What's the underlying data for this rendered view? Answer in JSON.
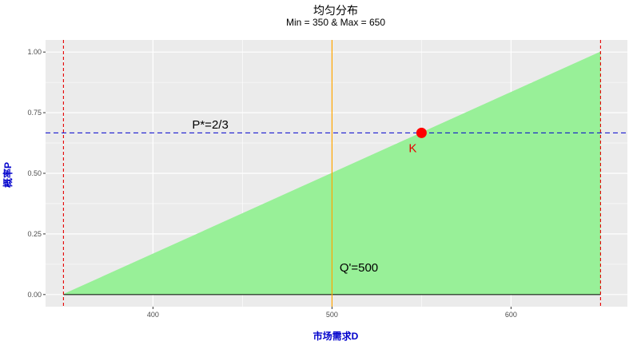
{
  "chart_data": {
    "type": "area",
    "title": "均匀分布",
    "subtitle": "Min = 350 & Max = 650",
    "xlabel": "市场需求D",
    "ylabel": "概率P",
    "xlim": [
      340,
      665
    ],
    "ylim": [
      -0.05,
      1.05
    ],
    "grid": true,
    "x_ticks": [
      400,
      500,
      600
    ],
    "x_tick_labels": [
      "400",
      "500",
      "600"
    ],
    "y_ticks": [
      0,
      0.25,
      0.5,
      0.75,
      1.0
    ],
    "y_tick_labels": [
      "0.00",
      "0.25",
      "0.50",
      "0.75",
      "1.00"
    ],
    "x_minor_ticks": [
      350,
      450,
      550,
      650
    ],
    "y_minor_ticks": [
      0.125,
      0.375,
      0.625,
      0.875
    ],
    "series": [
      {
        "x": [
          350,
          650
        ],
        "y": [
          0,
          1
        ]
      }
    ],
    "reference_lines": {
      "vertical_dashed": [
        350,
        650
      ],
      "vertical_solid": 500,
      "horizontal_dashed": 0.6667
    },
    "point": {
      "x": 550,
      "y": 0.6667,
      "label": "K"
    },
    "annotations": [
      {
        "text": "P*=2/3",
        "x": 432,
        "y": 0.685
      },
      {
        "text": "Q'=500",
        "x": 515,
        "y": 0.095
      }
    ],
    "colors": {
      "panel_background": "#EBEBEB",
      "grid": "#FFFFFF",
      "fill": "#98F098",
      "cdf_line": "#98F098",
      "baseline": "#000000",
      "bound_lines": "#E60000",
      "p_line": "#0000CC",
      "q_line": "#FFA500",
      "point": "#FF0000",
      "axis_title": "#0000CC"
    }
  }
}
